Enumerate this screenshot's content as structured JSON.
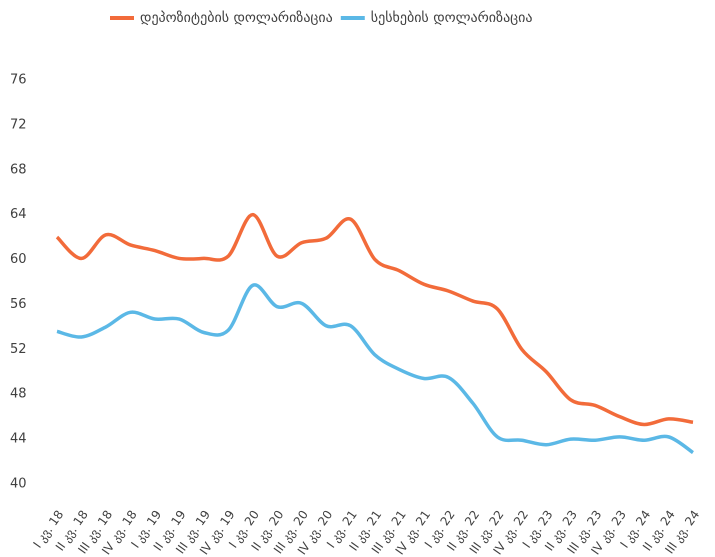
{
  "chart_data": {
    "type": "line",
    "categories": [
      "I კვ. 18",
      "II კვ. 18",
      "III კვ. 18",
      "IV კვ. 18",
      "I კვ. 19",
      "II კვ. 19",
      "III კვ. 19",
      "IV კვ. 19",
      "I კვ. 20",
      "II კვ. 20",
      "III კვ. 20",
      "IV კვ. 20",
      "I კვ. 21",
      "II კვ. 21",
      "III კვ. 21",
      "IV კვ. 21",
      "I კვ. 22",
      "II კვ. 22",
      "III კვ. 22",
      "IV კვ. 22",
      "I კვ. 23",
      "II კვ. 23",
      "III კვ. 23",
      "IV კვ. 23",
      "I კვ. 24",
      "II კვ. 24",
      "III კვ. 24"
    ],
    "series": [
      {
        "name": "დეპოზიტების დოლარიზაცია",
        "color": "#f26b3a",
        "values": [
          62,
          60.1,
          62.2,
          61.3,
          60.8,
          60.1,
          60.1,
          60.3,
          64,
          60.3,
          61.5,
          61.9,
          63.6,
          60,
          59,
          57.8,
          57.2,
          56.3,
          55.6,
          52,
          50,
          47.5,
          47,
          46,
          45.3,
          45.8,
          45.5
        ]
      },
      {
        "name": "სესხების დოლარიზაცია",
        "color": "#5bb8e6",
        "values": [
          53.6,
          53.1,
          54,
          55.3,
          54.7,
          54.7,
          53.5,
          53.7,
          57.7,
          55.8,
          56.1,
          54.1,
          54.1,
          51.5,
          50.2,
          49.4,
          49.5,
          47.2,
          44.2,
          43.9,
          43.5,
          44,
          43.9,
          44.2,
          43.9,
          44.2,
          42.8
        ]
      }
    ],
    "ylim": [
      40,
      76
    ],
    "yticks": [
      40,
      44,
      48,
      52,
      56,
      60,
      64,
      68,
      72,
      76
    ],
    "legend": "top"
  }
}
